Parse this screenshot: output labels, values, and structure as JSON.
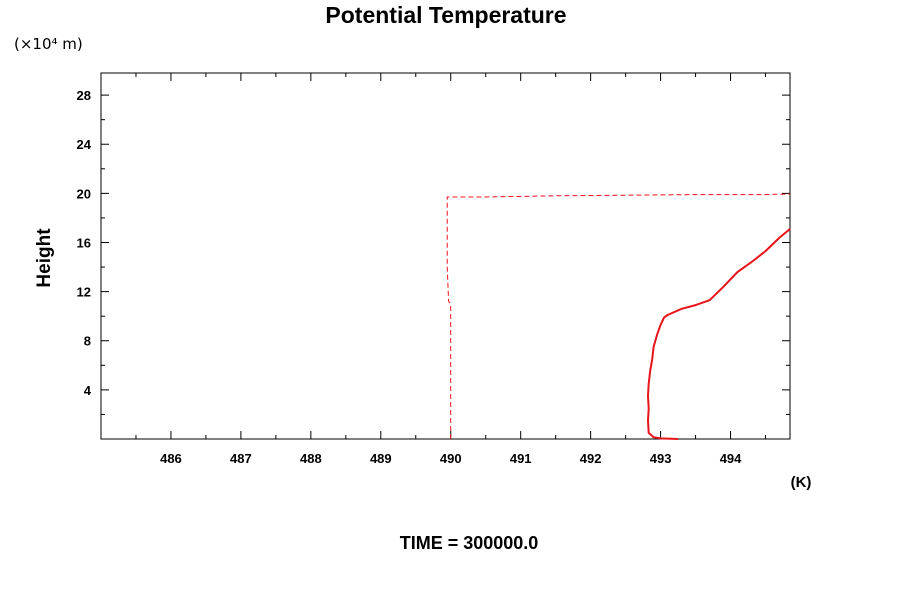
{
  "chart_data": {
    "type": "line",
    "title": "Potential Temperature",
    "xlabel": "(K)",
    "ylabel": "Height",
    "y_scale_label": "(×10⁴ m)",
    "footer": "TIME = 300000.0",
    "xlim": [
      485.0,
      494.85
    ],
    "ylim": [
      0.0,
      29.8
    ],
    "x_ticks": [
      486,
      487,
      488,
      489,
      490,
      491,
      492,
      493,
      494
    ],
    "y_ticks": [
      4,
      8,
      12,
      16,
      20,
      24,
      28
    ],
    "grid": false,
    "line_color": "#e8141b",
    "series": [
      {
        "style": "dashed",
        "points": [
          [
            490.0,
            0.0
          ],
          [
            490.0,
            5.0
          ],
          [
            490.0,
            11.0
          ],
          [
            489.97,
            11.2
          ],
          [
            489.95,
            14.0
          ],
          [
            489.95,
            19.7
          ],
          [
            490.5,
            19.7
          ],
          [
            491.5,
            19.8
          ],
          [
            492.5,
            19.85
          ],
          [
            493.5,
            19.9
          ],
          [
            494.5,
            19.9
          ],
          [
            494.85,
            19.95
          ]
        ]
      },
      {
        "style": "solid",
        "points": [
          [
            493.25,
            0.0
          ],
          [
            493.0,
            0.05
          ],
          [
            492.9,
            0.15
          ],
          [
            492.83,
            0.5
          ],
          [
            492.82,
            1.5
          ],
          [
            492.83,
            2.5
          ],
          [
            492.82,
            3.5
          ],
          [
            492.83,
            4.5
          ],
          [
            492.85,
            5.5
          ],
          [
            492.88,
            6.5
          ],
          [
            492.9,
            7.5
          ],
          [
            492.95,
            8.5
          ],
          [
            493.0,
            9.3
          ],
          [
            493.05,
            9.9
          ],
          [
            493.1,
            10.1
          ],
          [
            493.3,
            10.6
          ],
          [
            493.5,
            10.9
          ],
          [
            493.7,
            11.3
          ],
          [
            493.9,
            12.4
          ],
          [
            494.1,
            13.6
          ],
          [
            494.3,
            14.4
          ],
          [
            494.5,
            15.3
          ],
          [
            494.7,
            16.4
          ],
          [
            494.85,
            17.1
          ]
        ]
      }
    ]
  }
}
